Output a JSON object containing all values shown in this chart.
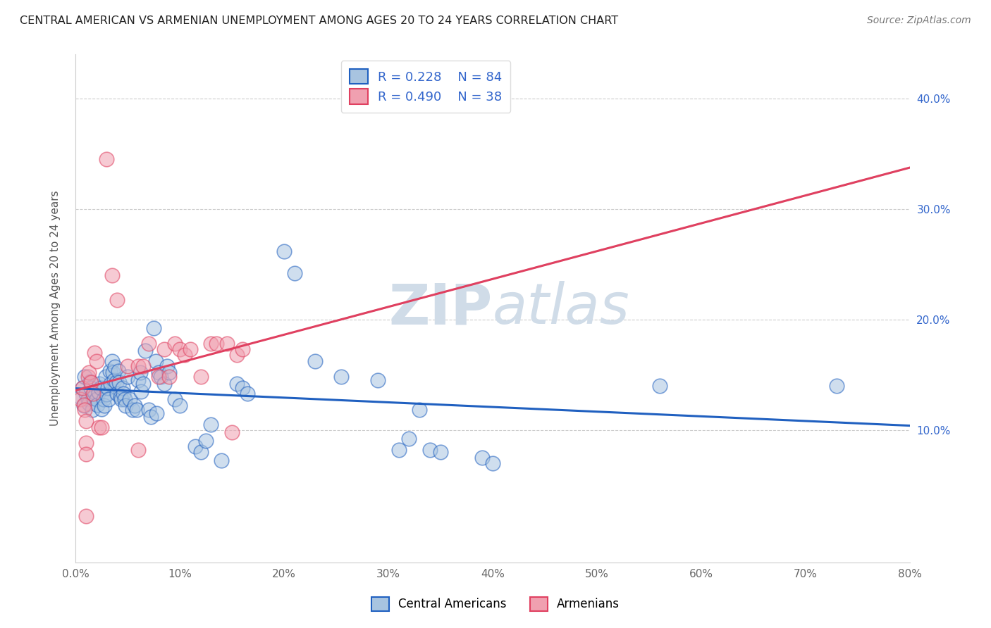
{
  "title": "CENTRAL AMERICAN VS ARMENIAN UNEMPLOYMENT AMONG AGES 20 TO 24 YEARS CORRELATION CHART",
  "source": "Source: ZipAtlas.com",
  "ylabel": "Unemployment Among Ages 20 to 24 years",
  "xlim": [
    0.0,
    0.8
  ],
  "ylim": [
    -0.02,
    0.44
  ],
  "xticks": [
    0.0,
    0.1,
    0.2,
    0.3,
    0.4,
    0.5,
    0.6,
    0.7,
    0.8
  ],
  "yticks": [
    0.1,
    0.2,
    0.3,
    0.4
  ],
  "blue_R": "0.228",
  "blue_N": "84",
  "pink_R": "0.490",
  "pink_N": "38",
  "blue_scatter_color": "#A8C4E0",
  "blue_line_color": "#2060C0",
  "pink_scatter_color": "#F0A0B0",
  "pink_line_color": "#E04060",
  "dashed_line_color": "#C8C8C8",
  "watermark_color": "#D0DCE8",
  "blue_points": [
    [
      0.005,
      0.13
    ],
    [
      0.007,
      0.138
    ],
    [
      0.008,
      0.122
    ],
    [
      0.009,
      0.148
    ],
    [
      0.01,
      0.133
    ],
    [
      0.012,
      0.128
    ],
    [
      0.013,
      0.124
    ],
    [
      0.014,
      0.144
    ],
    [
      0.015,
      0.138
    ],
    [
      0.016,
      0.118
    ],
    [
      0.017,
      0.129
    ],
    [
      0.018,
      0.134
    ],
    [
      0.02,
      0.128
    ],
    [
      0.021,
      0.123
    ],
    [
      0.022,
      0.134
    ],
    [
      0.023,
      0.142
    ],
    [
      0.024,
      0.138
    ],
    [
      0.025,
      0.119
    ],
    [
      0.027,
      0.128
    ],
    [
      0.028,
      0.122
    ],
    [
      0.029,
      0.148
    ],
    [
      0.03,
      0.132
    ],
    [
      0.031,
      0.138
    ],
    [
      0.032,
      0.128
    ],
    [
      0.033,
      0.153
    ],
    [
      0.034,
      0.142
    ],
    [
      0.035,
      0.162
    ],
    [
      0.036,
      0.152
    ],
    [
      0.037,
      0.145
    ],
    [
      0.038,
      0.157
    ],
    [
      0.039,
      0.143
    ],
    [
      0.04,
      0.133
    ],
    [
      0.041,
      0.153
    ],
    [
      0.042,
      0.143
    ],
    [
      0.043,
      0.13
    ],
    [
      0.044,
      0.128
    ],
    [
      0.045,
      0.138
    ],
    [
      0.046,
      0.133
    ],
    [
      0.047,
      0.128
    ],
    [
      0.048,
      0.122
    ],
    [
      0.05,
      0.148
    ],
    [
      0.052,
      0.128
    ],
    [
      0.055,
      0.118
    ],
    [
      0.057,
      0.122
    ],
    [
      0.059,
      0.118
    ],
    [
      0.06,
      0.145
    ],
    [
      0.062,
      0.152
    ],
    [
      0.063,
      0.135
    ],
    [
      0.065,
      0.142
    ],
    [
      0.067,
      0.172
    ],
    [
      0.07,
      0.118
    ],
    [
      0.072,
      0.112
    ],
    [
      0.075,
      0.192
    ],
    [
      0.077,
      0.162
    ],
    [
      0.078,
      0.115
    ],
    [
      0.08,
      0.152
    ],
    [
      0.082,
      0.148
    ],
    [
      0.085,
      0.142
    ],
    [
      0.088,
      0.158
    ],
    [
      0.09,
      0.152
    ],
    [
      0.095,
      0.128
    ],
    [
      0.1,
      0.122
    ],
    [
      0.115,
      0.085
    ],
    [
      0.12,
      0.08
    ],
    [
      0.125,
      0.09
    ],
    [
      0.13,
      0.105
    ],
    [
      0.14,
      0.072
    ],
    [
      0.155,
      0.142
    ],
    [
      0.16,
      0.138
    ],
    [
      0.165,
      0.133
    ],
    [
      0.2,
      0.262
    ],
    [
      0.21,
      0.242
    ],
    [
      0.23,
      0.162
    ],
    [
      0.255,
      0.148
    ],
    [
      0.29,
      0.145
    ],
    [
      0.31,
      0.082
    ],
    [
      0.32,
      0.092
    ],
    [
      0.33,
      0.118
    ],
    [
      0.34,
      0.082
    ],
    [
      0.35,
      0.08
    ],
    [
      0.39,
      0.075
    ],
    [
      0.4,
      0.07
    ],
    [
      0.56,
      0.14
    ],
    [
      0.73,
      0.14
    ]
  ],
  "pink_points": [
    [
      0.005,
      0.128
    ],
    [
      0.007,
      0.138
    ],
    [
      0.008,
      0.123
    ],
    [
      0.009,
      0.118
    ],
    [
      0.01,
      0.108
    ],
    [
      0.012,
      0.148
    ],
    [
      0.013,
      0.152
    ],
    [
      0.015,
      0.143
    ],
    [
      0.017,
      0.133
    ],
    [
      0.018,
      0.17
    ],
    [
      0.02,
      0.162
    ],
    [
      0.022,
      0.102
    ],
    [
      0.025,
      0.102
    ],
    [
      0.03,
      0.345
    ],
    [
      0.035,
      0.24
    ],
    [
      0.04,
      0.218
    ],
    [
      0.05,
      0.158
    ],
    [
      0.06,
      0.158
    ],
    [
      0.065,
      0.158
    ],
    [
      0.07,
      0.178
    ],
    [
      0.08,
      0.148
    ],
    [
      0.085,
      0.173
    ],
    [
      0.09,
      0.148
    ],
    [
      0.095,
      0.178
    ],
    [
      0.1,
      0.173
    ],
    [
      0.105,
      0.168
    ],
    [
      0.11,
      0.173
    ],
    [
      0.12,
      0.148
    ],
    [
      0.13,
      0.178
    ],
    [
      0.135,
      0.178
    ],
    [
      0.145,
      0.178
    ],
    [
      0.15,
      0.098
    ],
    [
      0.155,
      0.168
    ],
    [
      0.16,
      0.173
    ],
    [
      0.01,
      0.022
    ],
    [
      0.01,
      0.088
    ],
    [
      0.01,
      0.078
    ],
    [
      0.06,
      0.082
    ]
  ]
}
